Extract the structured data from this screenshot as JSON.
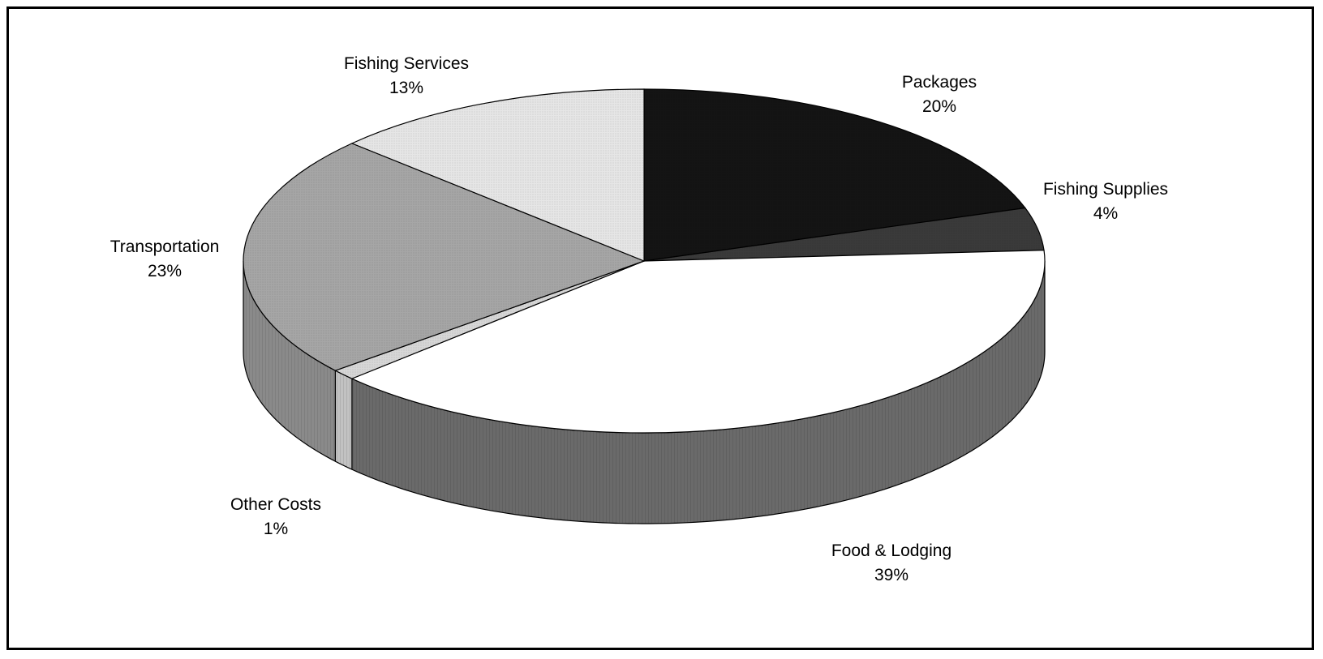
{
  "chart_data": {
    "type": "pie",
    "categories": [
      "Packages",
      "Fishing Supplies",
      "Food & Lodging",
      "Other Costs",
      "Transportation",
      "Fishing Services"
    ],
    "values": [
      20,
      4,
      39,
      1,
      23,
      13
    ],
    "percent_labels": [
      "20%",
      "4%",
      "39%",
      "1%",
      "23%",
      "13%"
    ],
    "colors": [
      "#141414",
      "#3a3a3a",
      "#ffffff",
      "#d7d7d7",
      "#a6a6a6",
      "#e6e6e6"
    ],
    "side_colors": [
      "#0c0c0c",
      "#2a2a2a",
      "#6a6a6a",
      "#c2c2c2",
      "#8a8a8a",
      "#d0d0d0"
    ],
    "title": "",
    "legend": "none"
  }
}
